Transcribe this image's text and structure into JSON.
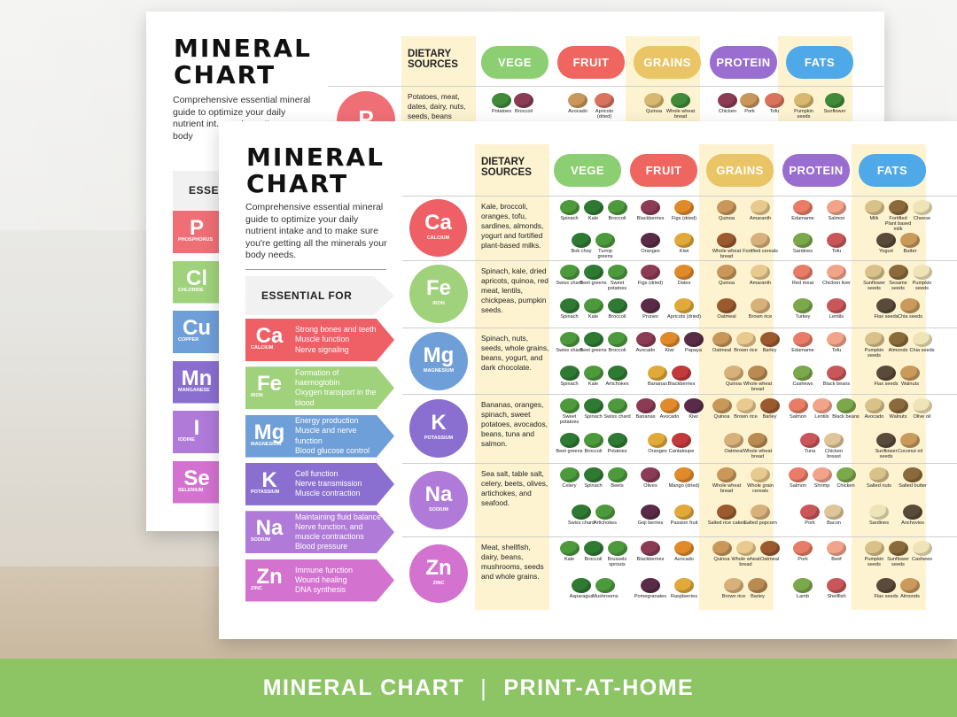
{
  "footer": {
    "title": "MINERAL CHART",
    "separator": "|",
    "subtitle": "PRINT-AT-HOME"
  },
  "sheet": {
    "title_line1": "MINERAL",
    "title_line2": "CHART",
    "intro": "Comprehensive essential mineral guide to optimize your daily nutrient intake and to make sure you're getting all the minerals your body needs.",
    "essential_header": "ESSENTIAL FOR",
    "dietary_header_line1": "DIETARY",
    "dietary_header_line2": "SOURCES",
    "columns": [
      "VEGE",
      "FRUIT",
      "GRAINS",
      "PROTEIN",
      "FATS"
    ]
  },
  "back_sheet": {
    "intro_fragment": "Comprehensive essential mineral guide to optimize your daily nutrient int... you're gett... your body",
    "essential_fragment": "ESSENTI",
    "p_sources": "Potatoes, meat, dates, dairy, nuts, seeds, beans",
    "first_row_foods": [
      "Potatoes",
      "Broccoli",
      "Avocado",
      "Apricots (dried)",
      "Quinoa",
      "Whole wheat bread",
      "Chicken",
      "Pork",
      "Tofu",
      "Pumpkin seeds",
      "Sunflower"
    ]
  },
  "essentials": [
    {
      "symbol": "Ca",
      "name": "CALCIUM",
      "functions": [
        "Strong bones and teeth",
        "Muscle function",
        "Nerve signaling"
      ]
    },
    {
      "symbol": "Fe",
      "name": "IRON",
      "functions": [
        "Formation of",
        "haemoglobin",
        "Oxygen transport in the",
        "blood"
      ]
    },
    {
      "symbol": "Mg",
      "name": "MAGNESIUM",
      "functions": [
        "Energy production",
        "Muscle and nerve",
        "function",
        "Blood glucose control"
      ]
    },
    {
      "symbol": "K",
      "name": "POTASSIUM",
      "functions": [
        "Cell function",
        "Nerve transmission",
        "Muscle contraction"
      ]
    },
    {
      "symbol": "Na",
      "name": "SODIUM",
      "functions": [
        "Maintaining fluid balance",
        "Nerve function, and",
        "muscle contractions",
        "Blood pressure"
      ]
    },
    {
      "symbol": "Zn",
      "name": "ZINC",
      "functions": [
        "Immune function",
        "Wound healing",
        "DNA synthesis"
      ]
    }
  ],
  "back_essentials": [
    {
      "symbol": "P",
      "name": "PHOSPHORUS"
    },
    {
      "symbol": "Cl",
      "name": "CHLORIDE"
    },
    {
      "symbol": "Cu",
      "name": "COPPER"
    },
    {
      "symbol": "Mn",
      "name": "MANGANESE"
    },
    {
      "symbol": "I",
      "name": "IODINE"
    },
    {
      "symbol": "Se",
      "name": "SELENIUM"
    }
  ],
  "rows": [
    {
      "symbol": "Ca",
      "name": "CALCIUM",
      "sources": "Kale, broccoli, oranges, tofu, sardines, almonds, yogurt and fortified plant-based milks.",
      "foods": [
        [
          "Spinach",
          "Kale",
          "Broccoli",
          "Bok choy",
          "Turnip greens"
        ],
        [
          "Blackberries",
          "Figs (dried)",
          "Oranges",
          "Kiwi"
        ],
        [
          "Quinoa",
          "Amaranth",
          "Whole wheat bread",
          "Fortified cereals"
        ],
        [
          "Edamame",
          "Salmon",
          "Sardines",
          "Tofu"
        ],
        [
          "Milk",
          "Fortified Plant based milk",
          "Cheese",
          "Yogurt",
          "Butter"
        ]
      ]
    },
    {
      "symbol": "Fe",
      "name": "IRON",
      "sources": "Spinach, kale, dried apricots, quinoa, red meat, lentils, chickpeas, pumpkin seeds.",
      "foods": [
        [
          "Swiss chard",
          "Beet greens",
          "Sweet potatoes",
          "Spinach",
          "Kale",
          "Broccoli"
        ],
        [
          "Figs (dried)",
          "Dates",
          "Prunes",
          "Apricots (dried)"
        ],
        [
          "Quinoa",
          "Amaranth",
          "Oatmeal",
          "Brown rice"
        ],
        [
          "Red meat",
          "Chicken liver",
          "Turkey",
          "Lentils"
        ],
        [
          "Sunflower seeds",
          "Sesame seeds",
          "Pumpkin seeds",
          "Flax seeds",
          "Chia seeds"
        ]
      ]
    },
    {
      "symbol": "Mg",
      "name": "MAGNESIUM",
      "sources": "Spinach, nuts, seeds, whole grains, beans, yogurt, and dark chocolate.",
      "foods": [
        [
          "Swiss chard",
          "Beet greens",
          "Broccoli",
          "Spinach",
          "Kale",
          "Artichokes"
        ],
        [
          "Avocado",
          "Kiwi",
          "Papaya",
          "Bananas",
          "Blackberries"
        ],
        [
          "Oatmeal",
          "Brown rice",
          "Barley",
          "Quinoa",
          "Whole wheat bread"
        ],
        [
          "Edamame",
          "Tofu",
          "Cashews",
          "Black beans"
        ],
        [
          "Pumpkin seeds",
          "Almonds",
          "Chia seeds",
          "Flax seeds",
          "Walnuts"
        ]
      ]
    },
    {
      "symbol": "K",
      "name": "POTASSIUM",
      "sources": "Bananas, oranges, spinach, sweet potatoes, avocados, beans, tuna and salmon.",
      "foods": [
        [
          "Sweet potatoes",
          "Spinach",
          "Swiss chard",
          "Beet greens",
          "Broccoli",
          "Potatoes"
        ],
        [
          "Bananas",
          "Avocado",
          "Kiwi",
          "Oranges",
          "Cantaloupe"
        ],
        [
          "Quinoa",
          "Brown rice",
          "Barley",
          "Oatmeal",
          "Whole wheat bread"
        ],
        [
          "Salmon",
          "Lentils",
          "Black beans",
          "Tuna",
          "Chicken breast"
        ],
        [
          "Avocado",
          "Walnuts",
          "Olive oil",
          "Sunflower seeds",
          "Coconut oil"
        ]
      ]
    },
    {
      "symbol": "Na",
      "name": "SODIUM",
      "sources": "Sea salt, table salt, celery, beets, olives, artichokes, and seafood.",
      "foods": [
        [
          "Celery",
          "Spinach",
          "Beets",
          "Swiss chard",
          "Artichokes"
        ],
        [
          "Olives",
          "Mango (dried)",
          "Goji berries",
          "Passion fruit"
        ],
        [
          "Whole wheat bread",
          "Whole grain cereals",
          "Salted rice cakes",
          "Salted popcorn"
        ],
        [
          "Salmon",
          "Shrimp",
          "Chicken",
          "Pork",
          "Bacon"
        ],
        [
          "Salted nuts",
          "Salted butter",
          "Sardines",
          "Anchovies"
        ]
      ]
    },
    {
      "symbol": "Zn",
      "name": "ZINC",
      "sources": "Meat, shellfish, dairy, beans, mushrooms, seeds and whole grains.",
      "foods": [
        [
          "Kale",
          "Broccoli",
          "Brussels sprouts",
          "Asparagus",
          "Mushrooms"
        ],
        [
          "Blackberries",
          "Avocado",
          "Pomegranates",
          "Raspberries"
        ],
        [
          "Quinoa",
          "Whole wheat bread",
          "Oatmeal",
          "Brown rice",
          "Barley"
        ],
        [
          "Pork",
          "Beef",
          "Lamb",
          "Shellfish"
        ],
        [
          "Pumpkin seeds",
          "Sunflower seeds",
          "Cashews",
          "Flax seeds",
          "Almonds"
        ]
      ]
    }
  ],
  "colors": {
    "Ca": "#ef5f66",
    "Fe": "#9fd27a",
    "Mg": "#6f9fd8",
    "K": "#8a6fd1",
    "Na": "#b07ad8",
    "Zn": "#d472d0",
    "P": "#ef6f76",
    "Cl": "#9fd27a",
    "Cu": "#6f9fd8",
    "Mn": "#8a6fd1",
    "I": "#b07ad8",
    "Se": "#d472d0",
    "VEGE": "#8ccf72",
    "FRUIT": "#ef6660",
    "GRAINS": "#e9c565",
    "PROTEIN": "#9a6ed0",
    "FATS": "#4fa9e8",
    "cream": "#fdf3d0",
    "footer": "#8dc464"
  }
}
